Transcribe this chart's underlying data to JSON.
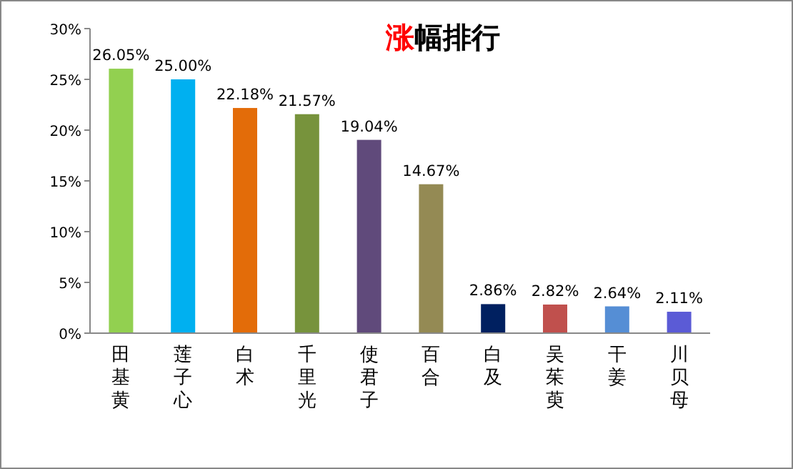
{
  "chart_data": {
    "type": "bar",
    "title": "涨幅排行",
    "categories": [
      "田基黄",
      "莲子心",
      "白术",
      "千里光",
      "使君子",
      "百合",
      "白及",
      "吴茱萸",
      "干姜",
      "川贝母"
    ],
    "values": [
      26.05,
      25.0,
      22.18,
      21.57,
      19.04,
      14.67,
      2.86,
      2.82,
      2.64,
      2.11
    ],
    "colors": [
      "#92d050",
      "#00b0f0",
      "#e36c09",
      "#77933c",
      "#604a7b",
      "#948a54",
      "#002060",
      "#c0504d",
      "#558ed5",
      "#5b5bd6"
    ],
    "value_labels": [
      "26.05%",
      "25.00%",
      "22.18%",
      "21.57%",
      "19.04%",
      "14.67%",
      "2.86%",
      "2.82%",
      "2.64%",
      "2.11%"
    ],
    "ylim": [
      0,
      30
    ],
    "yticks": [
      {
        "value": 0,
        "label": "0%"
      },
      {
        "value": 5,
        "label": "5%"
      },
      {
        "value": 10,
        "label": "10%"
      },
      {
        "value": 15,
        "label": "15%"
      },
      {
        "value": 20,
        "label": "20%"
      },
      {
        "value": 25,
        "label": "25%"
      },
      {
        "value": 30,
        "label": "30%"
      }
    ],
    "grid": false
  }
}
